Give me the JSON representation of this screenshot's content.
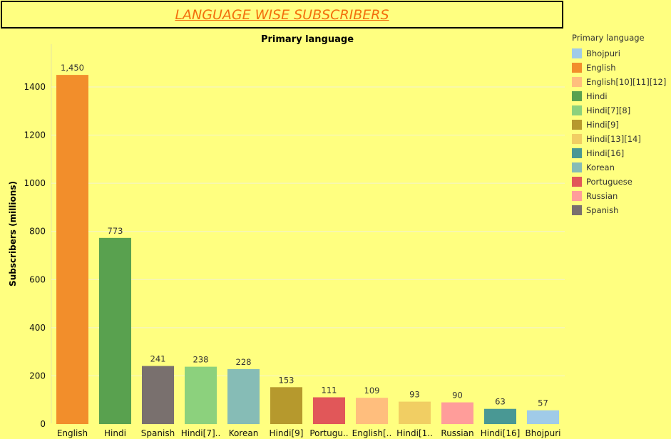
{
  "page_title": "LANGUAGE WISE SUBSCRIBERS",
  "chart_data": {
    "type": "bar",
    "title": "Primary language",
    "xlabel": "",
    "ylabel": "Subscribers (millions)",
    "ylim": [
      0,
      1500
    ],
    "yticks": [
      0,
      200,
      400,
      600,
      800,
      1000,
      1200,
      1400
    ],
    "grid": true,
    "legend_placement": "right",
    "categories": [
      "English",
      "Hindi",
      "Spanish",
      "Hindi[7]..",
      "Korean",
      "Hindi[9]",
      "Portugu..",
      "English[..",
      "Hindi[1..",
      "Russian",
      "Hindi[16]",
      "Bhojpuri"
    ],
    "values": [
      1450,
      773,
      241,
      238,
      228,
      153,
      111,
      109,
      93,
      90,
      63,
      57
    ],
    "value_labels": [
      "1,450",
      "773",
      "241",
      "238",
      "228",
      "153",
      "111",
      "109",
      "93",
      "90",
      "63",
      "57"
    ],
    "bar_colors": [
      "#f28e2b",
      "#59a14f",
      "#79706e",
      "#8cd17d",
      "#86bcb6",
      "#b6992d",
      "#e15759",
      "#ffbe7d",
      "#f1ce63",
      "#ff9d9a",
      "#499894",
      "#a0cbe8"
    ]
  },
  "legend": {
    "title": "Primary language",
    "items": [
      {
        "label": "Bhojpuri",
        "color": "#a0cbe8"
      },
      {
        "label": "English",
        "color": "#f28e2b"
      },
      {
        "label": "English[10][11][12]",
        "color": "#ffbe7d"
      },
      {
        "label": "Hindi",
        "color": "#59a14f"
      },
      {
        "label": "Hindi[7][8]",
        "color": "#8cd17d"
      },
      {
        "label": "Hindi[9]",
        "color": "#b6992d"
      },
      {
        "label": "Hindi[13][14]",
        "color": "#f1ce63"
      },
      {
        "label": "Hindi[16]",
        "color": "#499894"
      },
      {
        "label": "Korean",
        "color": "#86bcb6"
      },
      {
        "label": "Portuguese",
        "color": "#e15759"
      },
      {
        "label": "Russian",
        "color": "#ff9d9a"
      },
      {
        "label": "Spanish",
        "color": "#79706e"
      }
    ]
  },
  "colors": {
    "background": "#ffff80",
    "title": "#f36f0d"
  }
}
